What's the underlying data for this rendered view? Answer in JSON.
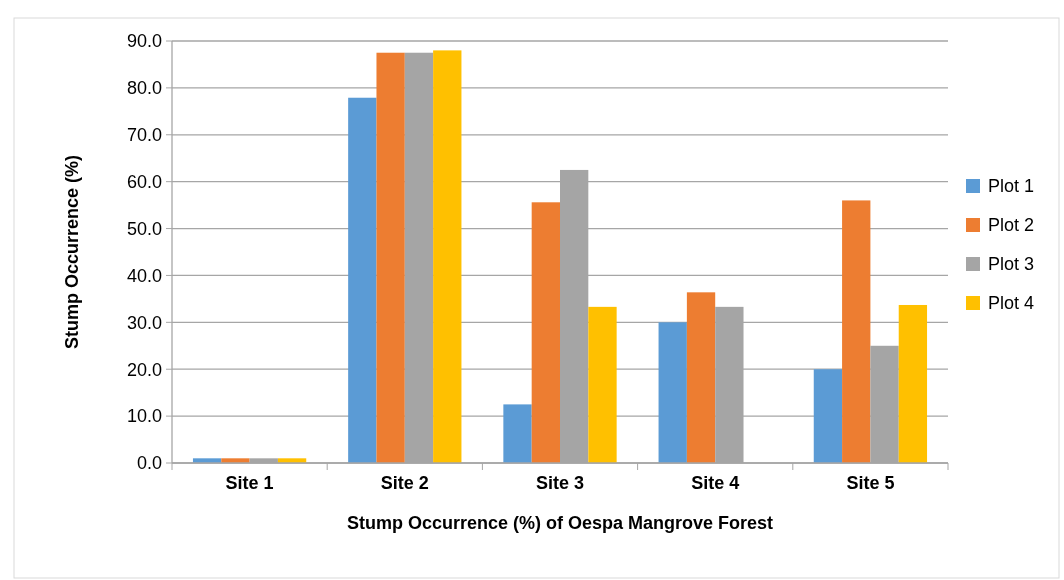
{
  "chart_data": {
    "type": "bar",
    "xlabel": "Stump Occurrence (%) of Oespa Mangrove Forest",
    "ylabel": "Stump Occurrence (%)",
    "categories": [
      "Site 1",
      "Site 2",
      "Site 3",
      "Site 4",
      "Site 5"
    ],
    "series": [
      {
        "name": "Plot 1",
        "color": "#5b9bd5",
        "values": [
          1.0,
          77.9,
          12.5,
          30.0,
          20.0
        ]
      },
      {
        "name": "Plot 2",
        "color": "#ed7d31",
        "values": [
          1.0,
          87.5,
          55.6,
          36.4,
          56.0
        ]
      },
      {
        "name": "Plot 3",
        "color": "#a5a5a5",
        "values": [
          1.0,
          87.5,
          62.5,
          33.3,
          25.0
        ]
      },
      {
        "name": "Plot 4",
        "color": "#ffc000",
        "values": [
          1.0,
          88.0,
          33.3,
          0,
          33.7
        ]
      }
    ],
    "ylim": [
      0,
      90
    ],
    "yticks": [
      {
        "value": 0,
        "label": "0.0"
      },
      {
        "value": 10,
        "label": "10.0"
      },
      {
        "value": 20,
        "label": "20.0"
      },
      {
        "value": 30,
        "label": "30.0"
      },
      {
        "value": 40,
        "label": "40.0"
      },
      {
        "value": 50,
        "label": "50.0"
      },
      {
        "value": 60,
        "label": "60.0"
      },
      {
        "value": 70,
        "label": "70.0"
      },
      {
        "value": 80,
        "label": "80.0"
      },
      {
        "value": 90,
        "label": "90.0"
      }
    ],
    "grid": "y",
    "legend": "right"
  }
}
